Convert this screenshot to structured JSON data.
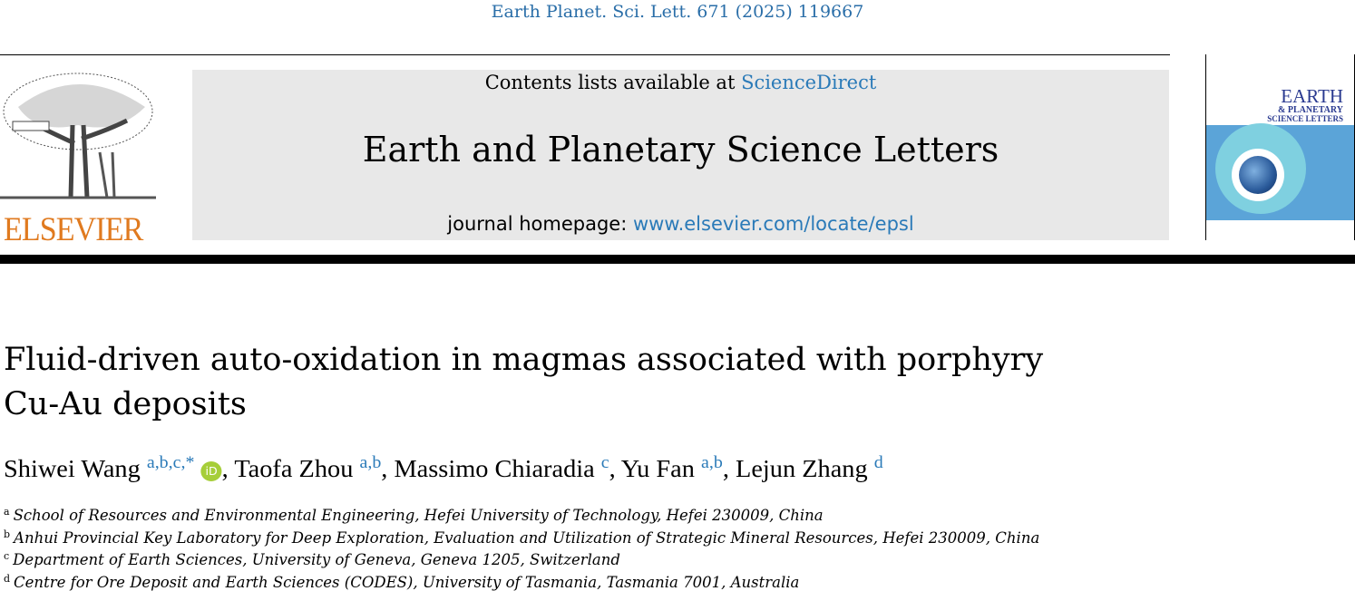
{
  "citation": "Earth Planet. Sci. Lett. 671 (2025) 119667",
  "publisher_logo": "ELSEVIER",
  "banner": {
    "contents_prefix": "Contents lists available at ",
    "contents_link": "ScienceDirect",
    "journal_title": "Earth and Planetary Science Letters",
    "homepage_prefix": "journal homepage: ",
    "homepage_link": "www.elsevier.com/locate/epsl"
  },
  "cover": {
    "line1": "EARTH",
    "line2": "& PLANETARY",
    "line3": "SCIENCE LETTERS",
    "accent": "#5ba4d8"
  },
  "article": {
    "title": "Fluid-driven auto-oxidation in magmas associated with porphyry Cu-Au deposits",
    "authors": [
      {
        "name": "Shiwei Wang",
        "sup": "a,b,c,*",
        "orcid": "iD"
      },
      {
        "name": "Taofa Zhou",
        "sup": "a,b"
      },
      {
        "name": "Massimo Chiaradia",
        "sup": "c"
      },
      {
        "name": "Yu Fan",
        "sup": "a,b"
      },
      {
        "name": "Lejun Zhang",
        "sup": "d"
      }
    ],
    "separator": ", ",
    "affiliations": [
      {
        "label": "a",
        "text": "School of Resources and Environmental Engineering, Hefei University of Technology, Hefei 230009, China"
      },
      {
        "label": "b",
        "text": "Anhui Provincial Key Laboratory for Deep Exploration, Evaluation and Utilization of Strategic Mineral Resources, Hefei 230009, China"
      },
      {
        "label": "c",
        "text": "Department of Earth Sciences, University of Geneva, Geneva 1205, Switzerland"
      },
      {
        "label": "d",
        "text": "Centre for Ore Deposit and Earth Sciences (CODES), University of Tasmania, Tasmania 7001, Australia"
      }
    ]
  }
}
